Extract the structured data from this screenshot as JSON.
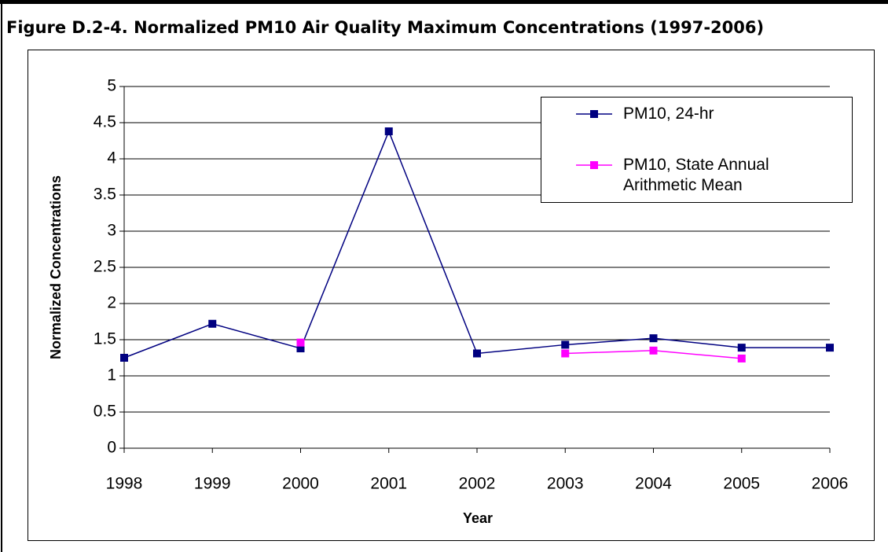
{
  "chart_data": {
    "type": "line",
    "title": "Figure D.2-4. Normalized PM10 Air Quality Maximum Concentrations (1997-2006)",
    "x_label": "Year",
    "y_label": "Normalized Concentrations",
    "categories": [
      "1998",
      "1999",
      "2000",
      "2001",
      "2002",
      "2003",
      "2004",
      "2005",
      "2006"
    ],
    "series": [
      {
        "name": "PM10, 24-hr",
        "color": "#000080",
        "values": [
          1.25,
          1.72,
          1.38,
          4.38,
          1.31,
          1.43,
          1.52,
          1.39,
          1.39
        ]
      },
      {
        "name": "PM10, State Annual Arithmetic Mean",
        "color": "#ff00ff",
        "values": [
          null,
          null,
          1.46,
          null,
          null,
          1.31,
          1.35,
          1.24,
          null
        ]
      }
    ],
    "ylim": [
      0,
      5
    ],
    "yticks": [
      0,
      0.5,
      1,
      1.5,
      2,
      2.5,
      3,
      3.5,
      4,
      4.5,
      5
    ],
    "grid": true,
    "legend": "top-right"
  }
}
